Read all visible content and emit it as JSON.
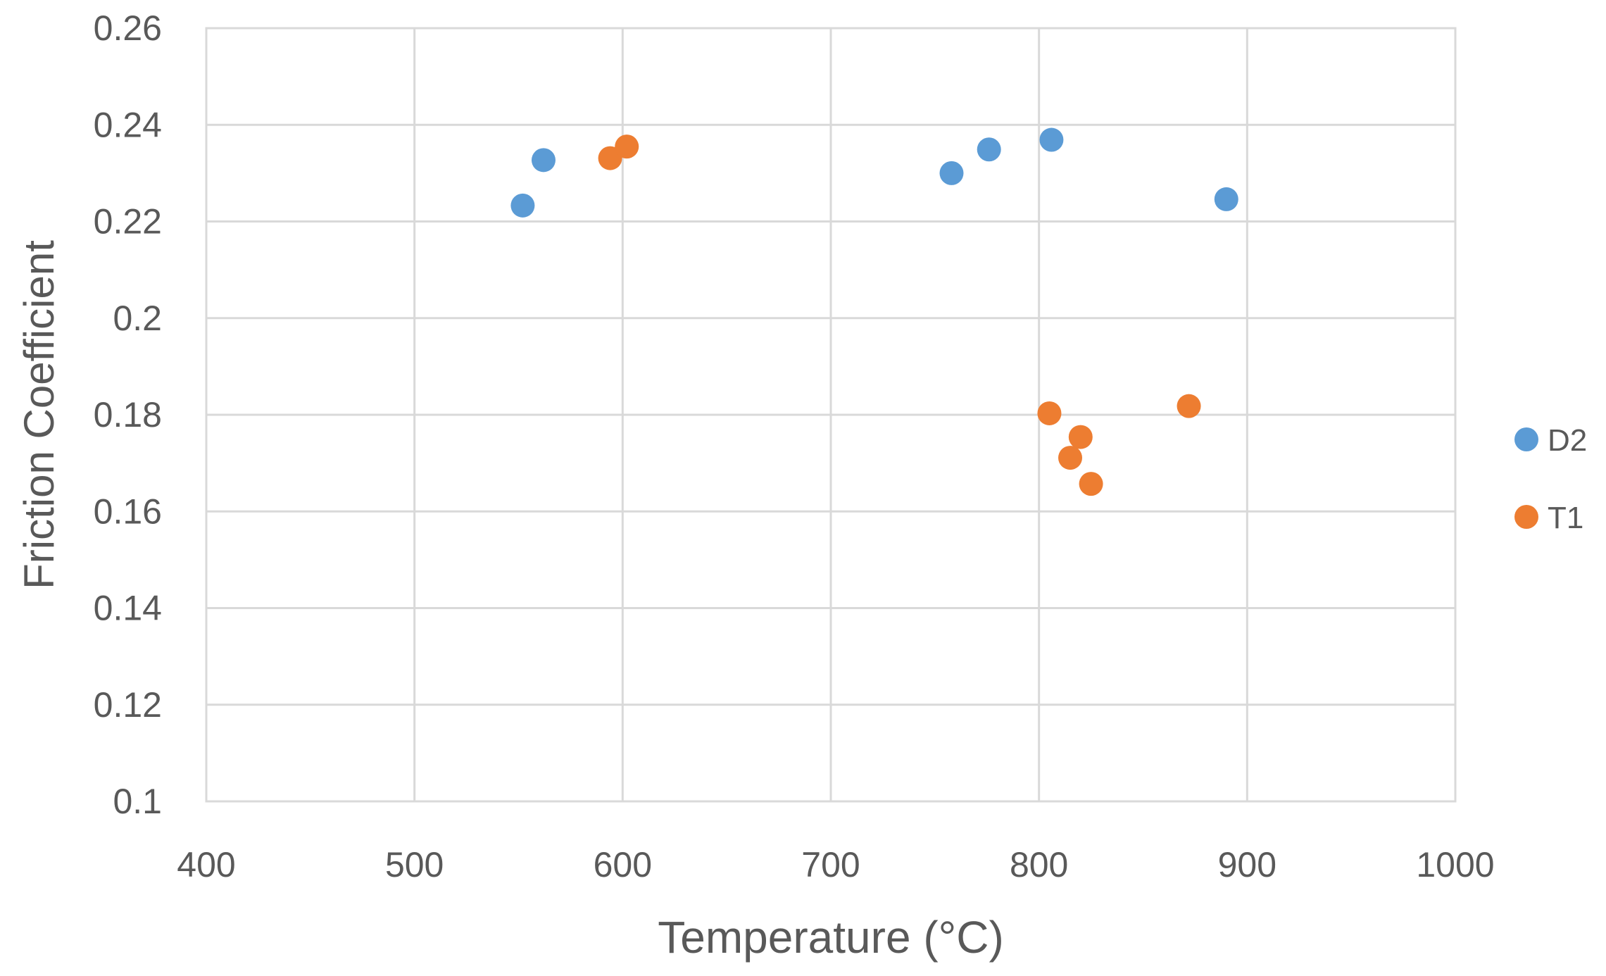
{
  "chart_data": {
    "type": "scatter",
    "title": "",
    "xlabel": "Temperature (°C)",
    "ylabel": "Friction Coefficient",
    "xlim": [
      400,
      1000
    ],
    "ylim": [
      0.1,
      0.26
    ],
    "x_ticks": [
      "400",
      "500",
      "600",
      "700",
      "800",
      "900",
      "1000"
    ],
    "y_ticks": [
      "0.1",
      "0.12",
      "0.14",
      "0.16",
      "0.18",
      "0.2",
      "0.22",
      "0.24",
      "0.26"
    ],
    "grid": true,
    "legend_position": "right",
    "series": [
      {
        "name": "D2",
        "color": "#5B9BD5",
        "points": [
          {
            "x": 552,
            "y": 0.2233
          },
          {
            "x": 562,
            "y": 0.2327
          },
          {
            "x": 758,
            "y": 0.23
          },
          {
            "x": 776,
            "y": 0.2349
          },
          {
            "x": 806,
            "y": 0.2369
          },
          {
            "x": 890,
            "y": 0.2246
          }
        ]
      },
      {
        "name": "T1",
        "color": "#ED7D31",
        "points": [
          {
            "x": 594,
            "y": 0.2331
          },
          {
            "x": 602,
            "y": 0.2355
          },
          {
            "x": 805,
            "y": 0.1803
          },
          {
            "x": 815,
            "y": 0.1711
          },
          {
            "x": 820,
            "y": 0.1754
          },
          {
            "x": 825,
            "y": 0.1657
          },
          {
            "x": 872,
            "y": 0.1818
          }
        ]
      }
    ]
  }
}
